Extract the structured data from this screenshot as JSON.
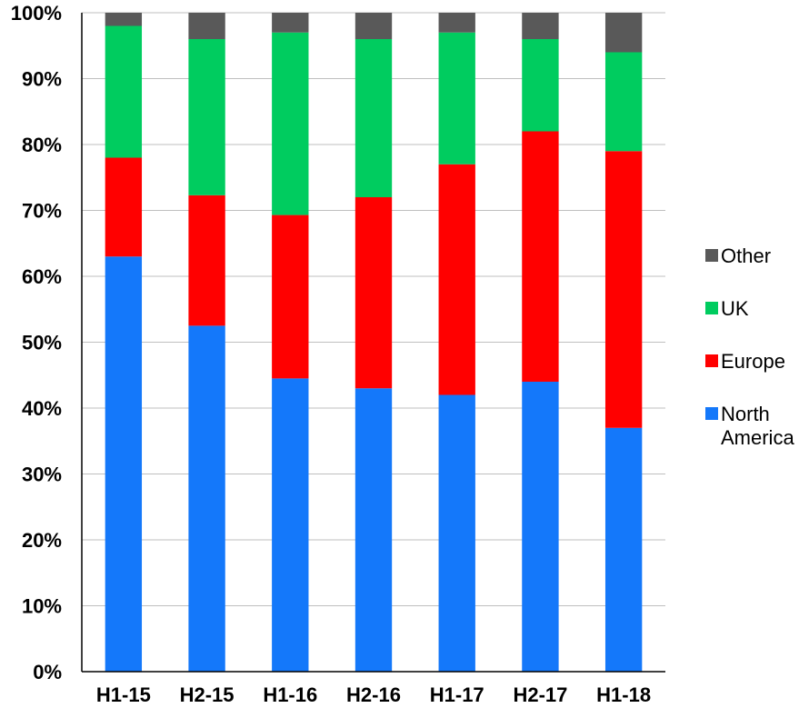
{
  "chart_data": {
    "type": "bar",
    "stacked": true,
    "percent": true,
    "title": "",
    "xlabel": "",
    "ylabel": "",
    "categories": [
      "H1-15",
      "H2-15",
      "H1-16",
      "H2-16",
      "H1-17",
      "H2-17",
      "H1-18"
    ],
    "ylim": [
      0,
      100
    ],
    "yticks": [
      "0%",
      "10%",
      "20%",
      "30%",
      "40%",
      "50%",
      "60%",
      "70%",
      "80%",
      "90%",
      "100%"
    ],
    "grid": true,
    "legend_position": "right",
    "series": [
      {
        "name": "North America",
        "color": "#1478fa",
        "values": [
          63,
          52.5,
          44.5,
          43,
          42,
          44,
          37
        ]
      },
      {
        "name": "Europe",
        "color": "#ff0000",
        "values": [
          15,
          19.8,
          24.8,
          29,
          35,
          38,
          42
        ]
      },
      {
        "name": "UK",
        "color": "#00cc5f",
        "values": [
          20,
          23.7,
          27.7,
          24,
          20,
          14,
          15
        ]
      },
      {
        "name": "Other",
        "color": "#595959",
        "values": [
          2,
          4,
          3,
          4,
          3,
          4,
          6
        ]
      }
    ],
    "legend_order": [
      "Other",
      "UK",
      "Europe",
      "North America"
    ]
  }
}
